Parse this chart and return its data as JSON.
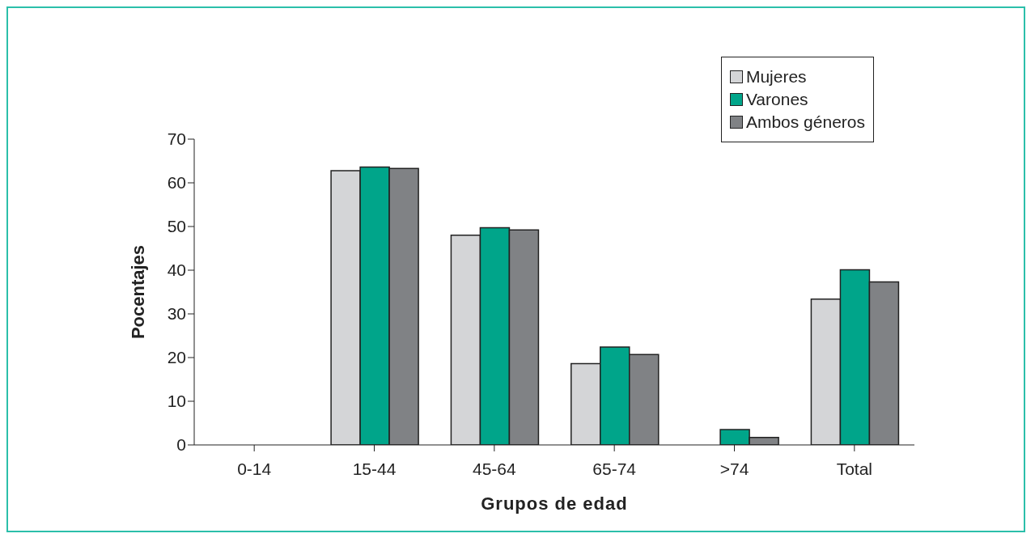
{
  "chart_data": {
    "type": "bar",
    "xlabel": "Grupos de edad",
    "ylabel": "Pocentajes",
    "categories": [
      "0-14",
      "15-44",
      "45-64",
      "65-74",
      ">74",
      "Total"
    ],
    "series": [
      {
        "name": "Mujeres",
        "color": "#d4d5d7",
        "values": [
          0,
          62.8,
          48.0,
          18.6,
          0,
          33.4
        ]
      },
      {
        "name": "Varones",
        "color": "#00a58a",
        "values": [
          0,
          63.6,
          49.7,
          22.4,
          3.5,
          40.1
        ]
      },
      {
        "name": "Ambos géneros",
        "color": "#808285",
        "values": [
          0,
          63.3,
          49.2,
          20.7,
          1.7,
          37.3
        ]
      }
    ],
    "ylim": [
      0,
      70
    ],
    "yticks": [
      0,
      10,
      20,
      30,
      40,
      50,
      60,
      70
    ],
    "grid": false,
    "legend": "top right"
  }
}
